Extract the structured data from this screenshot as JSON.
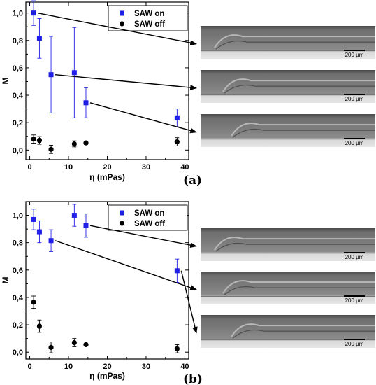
{
  "chart_data": [
    {
      "type": "scatter",
      "panel_label": "(a)",
      "xlabel": "η (mPas)",
      "ylabel": "M",
      "xlim": [
        -1,
        41
      ],
      "ylim": [
        -0.07,
        1.08
      ],
      "x_ticks": [
        0,
        10,
        20,
        30,
        40
      ],
      "y_ticks": [
        "0,0",
        "0,2",
        "0,4",
        "0,6",
        "0,8",
        "1,0"
      ],
      "y_tick_values": [
        0,
        0.2,
        0.4,
        0.6,
        0.8,
        1.0
      ],
      "legend": "top-right",
      "series": [
        {
          "name": "SAW on",
          "marker": "square",
          "color": "#1f1fe6",
          "x": [
            1.0,
            2.5,
            5.5,
            11.5,
            14.5,
            38.0
          ],
          "y": [
            1.0,
            0.815,
            0.55,
            0.565,
            0.345,
            0.235
          ],
          "err": [
            0.09,
            0.145,
            0.28,
            0.33,
            0.11,
            0.065
          ]
        },
        {
          "name": "SAW off",
          "marker": "circle",
          "color": "#000000",
          "x": [
            1.0,
            2.5,
            5.5,
            11.5,
            14.5,
            38.0
          ],
          "y": [
            0.08,
            0.07,
            0.005,
            0.045,
            0.052,
            0.06
          ],
          "err": [
            0.03,
            0.028,
            0.03,
            0.022,
            0.012,
            0.03
          ]
        }
      ],
      "arrows_from_points": [
        0,
        2,
        4
      ],
      "scale_bar_label": "200 µm"
    },
    {
      "type": "scatter",
      "panel_label": "(b)",
      "xlabel": "η (mPas)",
      "ylabel": "M",
      "xlim": [
        -1,
        41
      ],
      "ylim": [
        -0.05,
        1.1
      ],
      "x_ticks": [
        0,
        10,
        20,
        30,
        40
      ],
      "y_ticks": [
        "0,0",
        "0,2",
        "0,4",
        "0,6",
        "0,8",
        "1,0"
      ],
      "y_tick_values": [
        0,
        0.2,
        0.4,
        0.6,
        0.8,
        1.0
      ],
      "legend": "top-right",
      "series": [
        {
          "name": "SAW on",
          "marker": "square",
          "color": "#1f1fe6",
          "x": [
            1.0,
            2.5,
            5.5,
            11.5,
            14.5,
            38.0
          ],
          "y": [
            0.97,
            0.88,
            0.815,
            1.0,
            0.925,
            0.595
          ],
          "err": [
            0.075,
            0.08,
            0.08,
            0.08,
            0.085,
            0.085
          ]
        },
        {
          "name": "SAW off",
          "marker": "circle",
          "color": "#000000",
          "x": [
            1.0,
            2.5,
            5.5,
            11.5,
            14.5,
            38.0
          ],
          "y": [
            0.365,
            0.19,
            0.035,
            0.07,
            0.055,
            0.025
          ],
          "err": [
            0.045,
            0.045,
            0.04,
            0.03,
            0.008,
            0.03
          ]
        }
      ],
      "arrows_from_points": [
        4,
        2,
        5
      ],
      "scale_bar_label": "200 µm"
    }
  ]
}
